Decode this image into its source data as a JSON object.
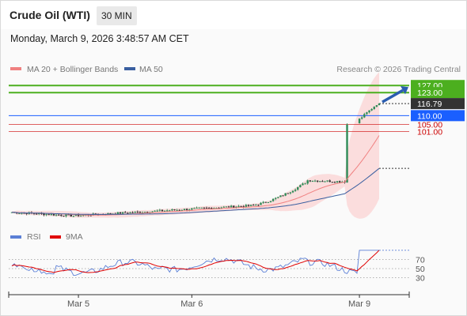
{
  "header": {
    "title": "Crude Oil (WTI)",
    "timeframe": "30 MIN"
  },
  "datetime": "Monday, March 9, 2026 3:48:57 AM CET",
  "legend": {
    "ma20_label": "MA 20 + Bollinger Bands",
    "ma50_label": "MA 50",
    "ma20_color": "#f08080",
    "ma50_color": "#3a5fa0",
    "attribution": "Research © 2026 Trading Central"
  },
  "rsi_legend": {
    "rsi_label": "RSI",
    "ma9_label": "9MA",
    "rsi_color": "#5b7fd6",
    "ma9_color": "#e00000"
  },
  "chart_data": [
    {
      "type": "candlestick",
      "x_tick_labels": [
        "Mar 5",
        "Mar 6",
        "Mar 9"
      ],
      "ylim": [
        50,
        132
      ],
      "levels": [
        {
          "value": 127.0,
          "label": "127.00",
          "kind": "target",
          "color": "#4caf1f"
        },
        {
          "value": 123.0,
          "label": "123.00",
          "kind": "target",
          "color": "#4caf1f"
        },
        {
          "value": 116.79,
          "label": "116.79",
          "kind": "last-price",
          "color": "#333333"
        },
        {
          "value": 110.0,
          "label": "110.00",
          "kind": "pivot",
          "color": "#1a5fff"
        },
        {
          "value": 105.0,
          "label": "105.00",
          "kind": "support",
          "color": "#cc0000"
        },
        {
          "value": 101.0,
          "label": "101.00",
          "kind": "support",
          "color": "#cc0000"
        }
      ],
      "projection": {
        "direction": "up",
        "color": "#2a5db0"
      },
      "colors": {
        "up": "#2e8b57",
        "down": "#333333",
        "band_fill": "#fbd3d3"
      }
    },
    {
      "type": "line",
      "name": "RSI",
      "y_tick_labels": [
        "70",
        "50",
        "30"
      ],
      "ylim": [
        0,
        100
      ]
    }
  ]
}
